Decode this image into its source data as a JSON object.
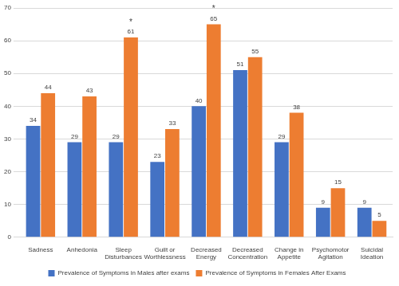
{
  "chart_data": {
    "type": "bar",
    "categories": [
      "Sadness",
      "Anhedonia",
      "Sleep Disturbances",
      "Guilt or Worthlessness",
      "Decreased Energy",
      "Decreased Concentration",
      "Change in Appetite",
      "Psychomotor Agitation",
      "Suicidal Ideation"
    ],
    "series": [
      {
        "name": "Prevalence of Symptoms in Males after exams",
        "color": "#4472c4",
        "values": [
          34,
          29,
          29,
          23,
          40,
          51,
          29,
          9,
          9
        ]
      },
      {
        "name": "Prevalence of Symptoms in Females After Exams",
        "color": "#ed7d31",
        "values": [
          44,
          43,
          61,
          33,
          65,
          55,
          38,
          15,
          5
        ]
      }
    ],
    "annotations": [
      {
        "text": "*",
        "category": "Sleep Disturbances",
        "series": "Prevalence of Symptoms in Females After Exams"
      },
      {
        "text": "*",
        "category": "Decreased Energy",
        "series": "Prevalence of Symptoms in Females After Exams"
      }
    ],
    "ylim": [
      0,
      70
    ],
    "yticks": [
      0,
      10,
      20,
      30,
      40,
      50,
      60,
      70
    ],
    "grid": true,
    "legend": "bottom",
    "data_labels": true
  }
}
